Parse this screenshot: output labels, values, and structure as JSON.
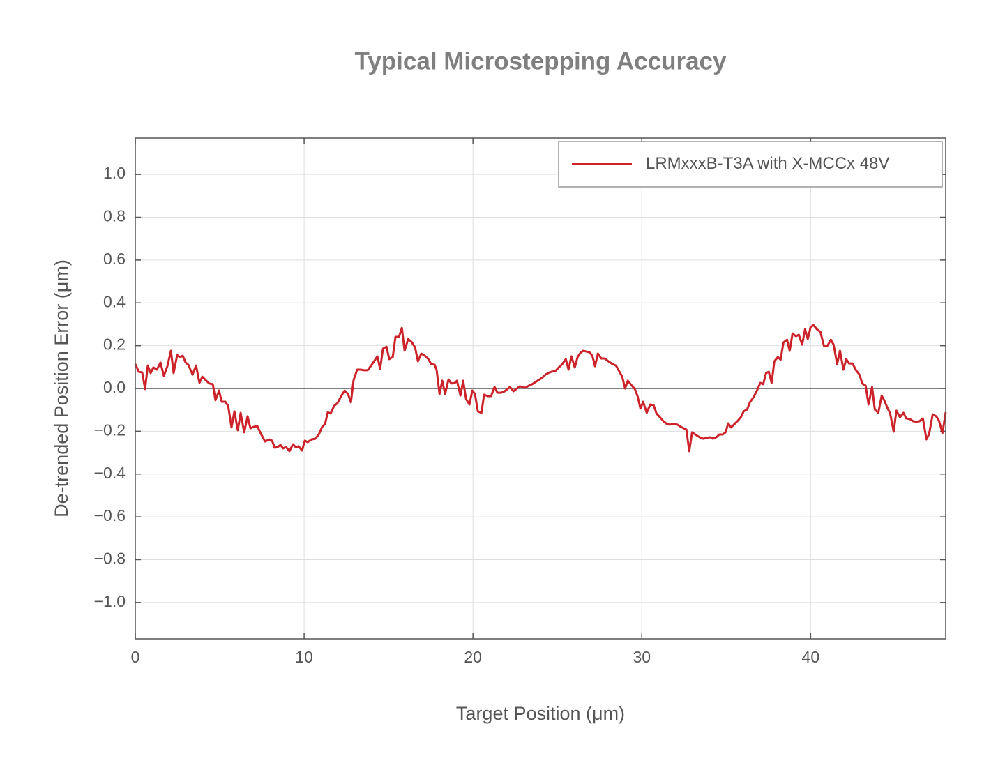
{
  "chart_data": {
    "type": "line",
    "title": "Typical Microstepping Accuracy",
    "xlabel": "Target Position (μm)",
    "ylabel": "De-trended Position Error (μm)",
    "x": [
      0.0,
      0.21,
      0.41,
      0.58,
      0.74,
      0.91,
      1.07,
      1.28,
      1.49,
      1.69,
      1.9,
      2.11,
      2.27,
      2.48,
      2.64,
      2.81,
      2.98,
      3.14,
      3.39,
      3.6,
      3.8,
      3.97,
      4.17,
      4.38,
      4.59,
      4.75,
      4.96,
      5.12,
      5.33,
      5.5,
      5.7,
      5.87,
      6.07,
      6.24,
      6.45,
      6.65,
      6.82,
      7.02,
      7.23,
      7.44,
      7.69,
      7.93,
      8.1,
      8.26,
      8.43,
      8.6,
      8.76,
      8.93,
      9.13,
      9.34,
      9.5,
      9.67,
      9.88,
      10.04,
      10.21,
      10.45,
      10.66,
      10.87,
      11.07,
      11.24,
      11.4,
      11.57,
      11.78,
      11.98,
      12.19,
      12.4,
      12.6,
      12.77,
      12.93,
      13.14,
      13.35,
      13.55,
      13.76,
      13.97,
      14.17,
      14.34,
      14.5,
      14.67,
      14.88,
      15.04,
      15.25,
      15.41,
      15.62,
      15.79,
      15.95,
      16.16,
      16.36,
      16.57,
      16.74,
      16.94,
      17.15,
      17.36,
      17.52,
      17.73,
      17.85,
      18.02,
      18.18,
      18.35,
      18.55,
      18.72,
      18.93,
      19.05,
      19.26,
      19.42,
      19.59,
      19.79,
      19.96,
      20.12,
      20.29,
      20.5,
      20.66,
      20.87,
      21.07,
      21.28,
      21.45,
      21.65,
      21.82,
      21.98,
      22.19,
      22.4,
      22.56,
      22.77,
      22.93,
      23.1,
      23.31,
      23.51,
      23.68,
      23.88,
      24.09,
      24.3,
      24.46,
      24.63,
      24.88,
      25.08,
      25.29,
      25.5,
      25.66,
      25.83,
      26.03,
      26.2,
      26.36,
      26.53,
      26.69,
      26.9,
      27.07,
      27.23,
      27.4,
      27.6,
      27.81,
      28.02,
      28.26,
      28.47,
      28.68,
      28.84,
      29.01,
      29.17,
      29.38,
      29.59,
      29.75,
      29.92,
      30.08,
      30.29,
      30.5,
      30.7,
      30.87,
      31.07,
      31.28,
      31.49,
      31.65,
      31.9,
      32.11,
      32.31,
      32.48,
      32.64,
      32.81,
      32.98,
      33.22,
      33.43,
      33.64,
      33.84,
      34.05,
      34.21,
      34.42,
      34.59,
      34.79,
      34.96,
      35.12,
      35.29,
      35.45,
      35.66,
      35.87,
      36.03,
      36.24,
      36.4,
      36.61,
      36.82,
      37.02,
      37.19,
      37.36,
      37.52,
      37.69,
      37.85,
      38.06,
      38.22,
      38.39,
      38.6,
      38.76,
      38.93,
      39.13,
      39.3,
      39.5,
      39.67,
      39.83,
      40.0,
      40.17,
      40.37,
      40.58,
      40.79,
      40.99,
      41.2,
      41.36,
      41.57,
      41.74,
      41.94,
      42.11,
      42.27,
      42.48,
      42.69,
      42.89,
      43.06,
      43.26,
      43.43,
      43.64,
      43.8,
      44.01,
      44.21,
      44.38,
      44.55,
      44.71,
      44.92,
      45.08,
      45.29,
      45.5,
      45.66,
      45.87,
      46.07,
      46.28,
      46.45,
      46.65,
      46.86,
      47.02,
      47.23,
      47.44,
      47.6,
      47.81,
      48.0
    ],
    "series": [
      {
        "name": "LRMxxxB-T3A with X-MCCx 48V",
        "color": "#cc2229",
        "values": [
          0.114,
          0.078,
          0.075,
          -0.003,
          0.107,
          0.072,
          0.098,
          0.088,
          0.121,
          0.059,
          0.104,
          0.176,
          0.072,
          0.156,
          0.147,
          0.153,
          0.121,
          0.111,
          0.065,
          0.107,
          0.026,
          0.055,
          0.039,
          0.023,
          0.02,
          -0.055,
          -0.01,
          -0.062,
          -0.062,
          -0.081,
          -0.182,
          -0.107,
          -0.195,
          -0.114,
          -0.205,
          -0.13,
          -0.186,
          -0.179,
          -0.176,
          -0.212,
          -0.248,
          -0.238,
          -0.244,
          -0.277,
          -0.274,
          -0.264,
          -0.28,
          -0.274,
          -0.293,
          -0.261,
          -0.274,
          -0.27,
          -0.29,
          -0.244,
          -0.251,
          -0.238,
          -0.235,
          -0.215,
          -0.179,
          -0.166,
          -0.111,
          -0.117,
          -0.081,
          -0.068,
          -0.036,
          -0.01,
          -0.026,
          -0.065,
          0.039,
          0.088,
          0.088,
          0.085,
          0.085,
          0.107,
          0.13,
          0.15,
          0.091,
          0.186,
          0.195,
          0.137,
          0.147,
          0.241,
          0.241,
          0.283,
          0.176,
          0.231,
          0.218,
          0.192,
          0.127,
          0.163,
          0.153,
          0.137,
          0.114,
          0.111,
          0.085,
          -0.026,
          0.036,
          -0.026,
          0.042,
          0.023,
          0.026,
          0.036,
          -0.033,
          0.036,
          -0.049,
          -0.075,
          -0.01,
          -0.026,
          -0.107,
          -0.114,
          -0.029,
          -0.036,
          -0.036,
          0.007,
          -0.02,
          -0.02,
          -0.016,
          -0.007,
          0.007,
          -0.013,
          -0.003,
          0.01,
          0.007,
          0.003,
          0.013,
          0.02,
          0.029,
          0.039,
          0.049,
          0.065,
          0.072,
          0.078,
          0.081,
          0.098,
          0.114,
          0.137,
          0.088,
          0.15,
          0.098,
          0.147,
          0.166,
          0.176,
          0.173,
          0.169,
          0.153,
          0.104,
          0.163,
          0.14,
          0.14,
          0.127,
          0.114,
          0.107,
          0.078,
          0.055,
          0.0,
          0.036,
          0.016,
          -0.003,
          -0.036,
          -0.094,
          -0.062,
          -0.114,
          -0.075,
          -0.078,
          -0.117,
          -0.134,
          -0.153,
          -0.166,
          -0.169,
          -0.166,
          -0.169,
          -0.179,
          -0.186,
          -0.192,
          -0.293,
          -0.205,
          -0.218,
          -0.228,
          -0.235,
          -0.231,
          -0.228,
          -0.235,
          -0.228,
          -0.215,
          -0.215,
          -0.205,
          -0.163,
          -0.182,
          -0.169,
          -0.153,
          -0.134,
          -0.107,
          -0.098,
          -0.065,
          -0.042,
          -0.01,
          0.026,
          0.02,
          0.072,
          0.078,
          0.026,
          0.127,
          0.147,
          0.134,
          0.215,
          0.228,
          0.176,
          0.257,
          0.244,
          0.251,
          0.205,
          0.277,
          0.231,
          0.287,
          0.296,
          0.277,
          0.264,
          0.199,
          0.199,
          0.228,
          0.205,
          0.114,
          0.176,
          0.088,
          0.137,
          0.117,
          0.117,
          0.085,
          0.065,
          0.023,
          0.013,
          -0.075,
          0.007,
          -0.098,
          -0.114,
          -0.033,
          -0.059,
          -0.091,
          -0.117,
          -0.202,
          -0.104,
          -0.134,
          -0.114,
          -0.14,
          -0.143,
          -0.153,
          -0.156,
          -0.153,
          -0.14,
          -0.238,
          -0.212,
          -0.121,
          -0.13,
          -0.15,
          -0.208,
          -0.111
        ]
      }
    ],
    "xlim": [
      0,
      48
    ],
    "xticks": [
      0,
      10,
      20,
      30,
      40
    ],
    "ylim": [
      -1.17,
      1.17
    ],
    "yticks": [
      {
        "value": -1.0,
        "label": "−1.0"
      },
      {
        "value": -0.8,
        "label": "−0.8"
      },
      {
        "value": -0.6,
        "label": "−0.6"
      },
      {
        "value": -0.4,
        "label": "−0.4"
      },
      {
        "value": -0.2,
        "label": "−0.2"
      },
      {
        "value": 0,
        "label": "0.0"
      },
      {
        "value": 0.2,
        "label": "0.2"
      },
      {
        "value": 0.4,
        "label": "0.4"
      },
      {
        "value": 0.6,
        "label": "0.6"
      },
      {
        "value": 0.8,
        "label": "0.8"
      },
      {
        "value": 1.0,
        "label": "1.0"
      }
    ],
    "reference_line": 0,
    "grid": true,
    "legend": "upper-right"
  }
}
